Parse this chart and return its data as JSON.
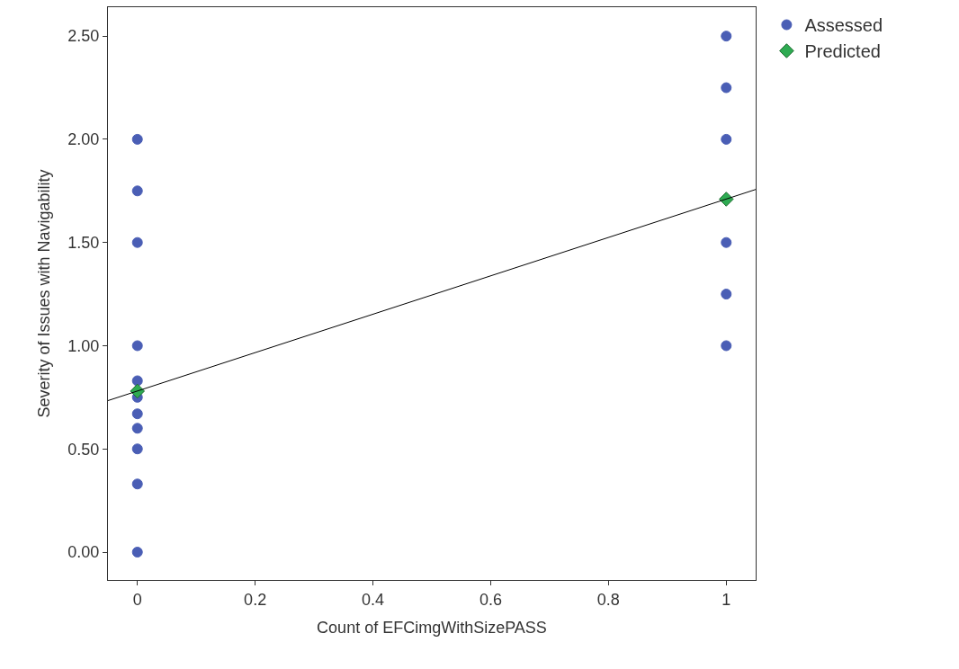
{
  "chart_data": {
    "type": "scatter",
    "xlabel": "Count of EFCimgWithSizePASS",
    "ylabel": "Severity of Issues with Navigability",
    "series": [
      {
        "name": "Assessed",
        "color": "#4a5eb5",
        "marker": "circle",
        "x": [
          0,
          0,
          0,
          0,
          0,
          0,
          0,
          0,
          0,
          0,
          0,
          1,
          1,
          1,
          1,
          1,
          1
        ],
        "values": [
          2.0,
          1.75,
          1.5,
          1.0,
          0.83,
          0.75,
          0.67,
          0.6,
          0.5,
          0.33,
          0.0,
          2.5,
          2.25,
          2.0,
          1.5,
          1.25,
          1.0
        ]
      },
      {
        "name": "Predicted",
        "color": "#2eab52",
        "marker": "diamond",
        "x": [
          0,
          1
        ],
        "values": [
          0.78,
          1.71
        ]
      },
      {
        "type": "line",
        "color": "#000000",
        "marker": "none",
        "x": [
          -0.05,
          1.05
        ],
        "values": [
          0.734,
          1.757
        ]
      }
    ],
    "xlim": [
      -0.05,
      1.05
    ],
    "xticks": [
      0,
      0.2,
      0.4,
      0.6,
      0.8,
      1
    ],
    "ylim": [
      -0.135,
      2.64
    ],
    "yticks": [
      {
        "value": 0,
        "label": "0.00"
      },
      {
        "value": 0.5,
        "label": "0.50"
      },
      {
        "value": 1,
        "label": "1.00"
      },
      {
        "value": 1.5,
        "label": "1.50"
      },
      {
        "value": 2,
        "label": "2.00"
      },
      {
        "value": 2.5,
        "label": "2.50"
      }
    ],
    "legend": "top right"
  }
}
